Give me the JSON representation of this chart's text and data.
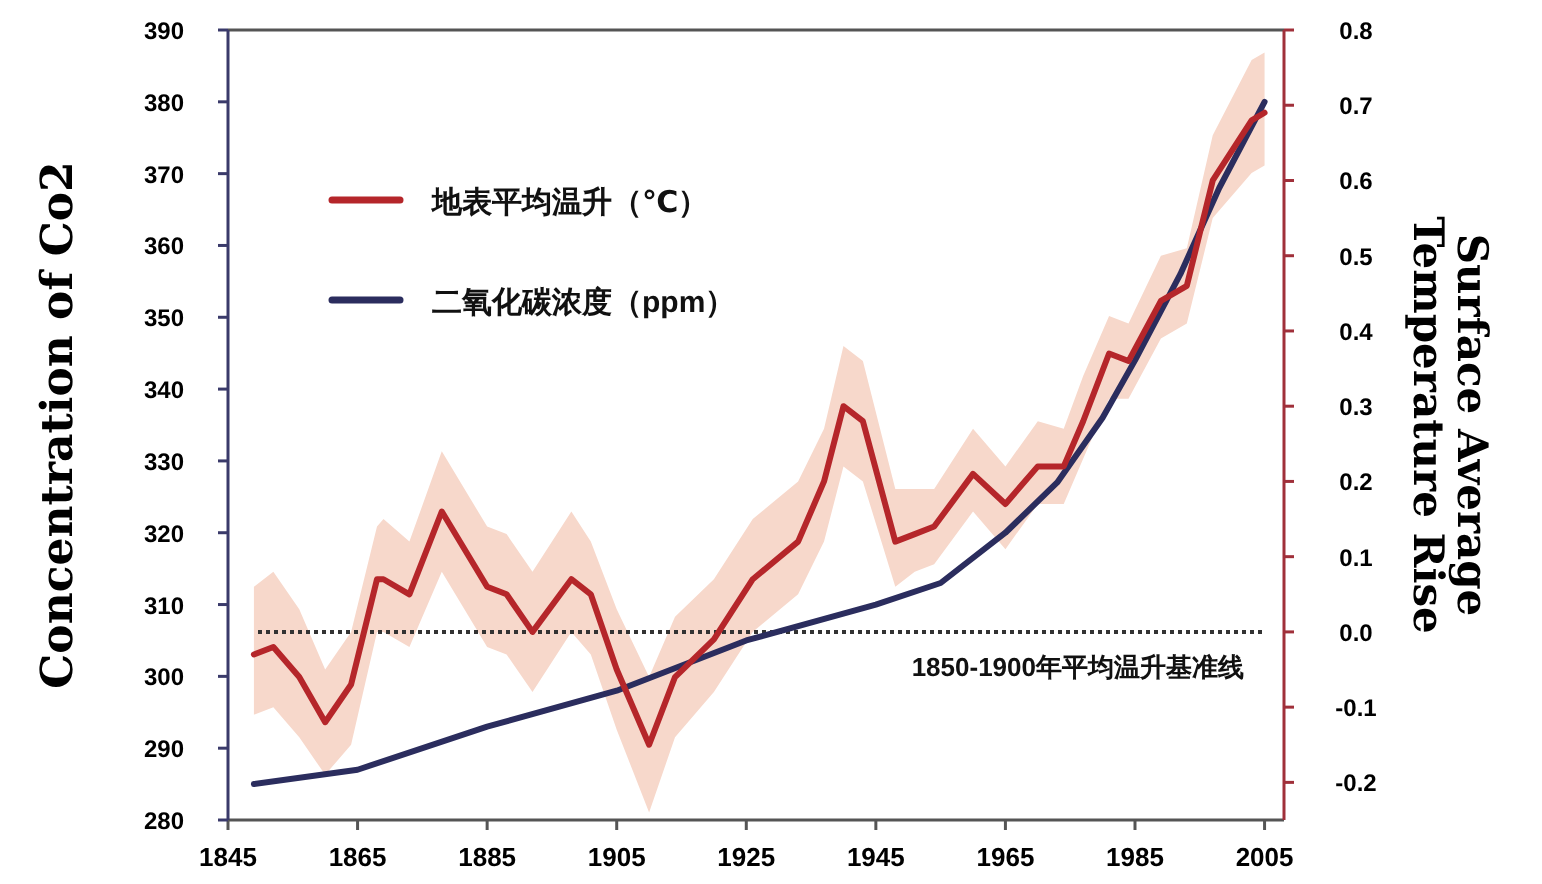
{
  "chart_data": {
    "type": "line",
    "xlabel": null,
    "ylabel": "Concentration of Co2",
    "y2label": "Surface Average Temperature Rise",
    "xlim": [
      1845,
      2008
    ],
    "xticks": [
      1845,
      1865,
      1885,
      1905,
      1925,
      1945,
      1965,
      1985,
      2005
    ],
    "ylim": [
      280,
      390
    ],
    "yticks": [
      280,
      290,
      300,
      310,
      320,
      330,
      340,
      350,
      360,
      370,
      380,
      390
    ],
    "y2lim": [
      -0.25,
      0.8
    ],
    "y2ticks": [
      -0.2,
      -0.1,
      {
        "value": 0,
        "label": "0.0"
      },
      0.1,
      0.2,
      0.3,
      0.4,
      0.5,
      0.6,
      0.7,
      0.8
    ],
    "legend": "top left",
    "grid": false,
    "line_style": "solid",
    "ref_lines": [
      {
        "axis": "y2",
        "value": 0,
        "label": "1850-1900年平均温升基准线",
        "color": "#333333",
        "line_style": "dotted"
      }
    ],
    "series": [
      {
        "name": "地表平均温升（℃）",
        "color": "#b5262a",
        "axis": "y2",
        "x": [
          1849,
          1852,
          1856,
          1860,
          1864,
          1868,
          1869,
          1873,
          1878,
          1885,
          1888,
          1892,
          1898,
          1901,
          1905,
          1910,
          1914,
          1920,
          1926,
          1933,
          1937,
          1940,
          1943,
          1948,
          1951,
          1954,
          1960,
          1965,
          1970,
          1974,
          1977,
          1981,
          1984,
          1989,
          1993,
          1997,
          2003,
          2005
        ],
        "values": [
          -0.03,
          -0.02,
          -0.06,
          -0.12,
          -0.07,
          0.07,
          0.07,
          0.05,
          0.16,
          0.06,
          0.05,
          0.0,
          0.07,
          0.05,
          -0.05,
          -0.15,
          -0.06,
          -0.01,
          0.07,
          0.12,
          0.2,
          0.3,
          0.28,
          0.12,
          0.13,
          0.14,
          0.21,
          0.17,
          0.22,
          0.22,
          0.28,
          0.37,
          0.36,
          0.44,
          0.46,
          0.6,
          0.68,
          0.69
        ],
        "lower": [
          -0.11,
          -0.1,
          -0.14,
          -0.19,
          -0.15,
          0.0,
          0.0,
          -0.02,
          0.08,
          -0.02,
          -0.03,
          -0.08,
          0.0,
          -0.03,
          -0.13,
          -0.24,
          -0.14,
          -0.08,
          0.0,
          0.05,
          0.12,
          0.22,
          0.2,
          0.06,
          0.08,
          0.09,
          0.16,
          0.11,
          0.17,
          0.17,
          0.23,
          0.31,
          0.31,
          0.39,
          0.41,
          0.55,
          0.61,
          0.62
        ],
        "upper": [
          0.06,
          0.08,
          0.03,
          -0.05,
          0.0,
          0.14,
          0.15,
          0.12,
          0.24,
          0.14,
          0.13,
          0.08,
          0.16,
          0.12,
          0.03,
          -0.06,
          0.02,
          0.07,
          0.15,
          0.2,
          0.27,
          0.38,
          0.36,
          0.19,
          0.19,
          0.19,
          0.27,
          0.22,
          0.28,
          0.27,
          0.34,
          0.42,
          0.41,
          0.5,
          0.51,
          0.66,
          0.76,
          0.77
        ]
      },
      {
        "name": "二氧化碳浓度（ppm）",
        "color": "#2b2d5e",
        "x": [
          1849,
          1865,
          1885,
          1905,
          1925,
          1945,
          1955,
          1965,
          1973,
          1980,
          1985,
          1992,
          1998,
          2005
        ],
        "values": [
          285,
          287,
          293,
          298,
          305,
          310,
          313,
          320,
          327,
          336,
          344,
          356,
          368,
          380
        ]
      }
    ]
  }
}
